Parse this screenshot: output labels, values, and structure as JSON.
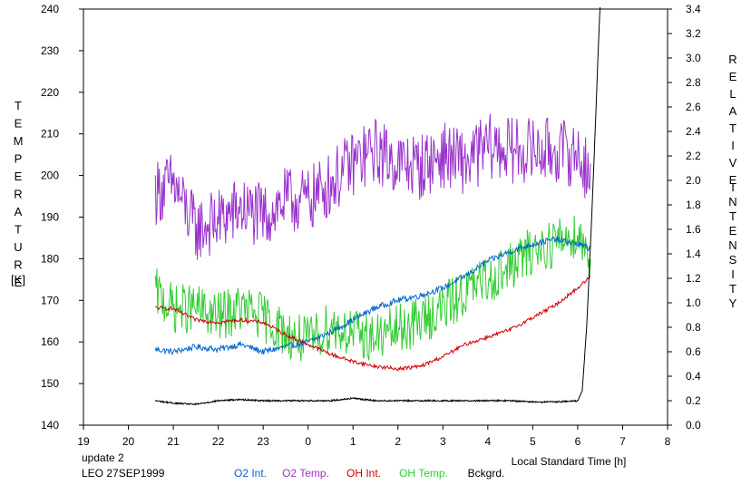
{
  "chart_data": {
    "type": "line",
    "xlabel": "Local Standard Time [h]",
    "x_ticks": [
      "19",
      "20",
      "21",
      "22",
      "23",
      "0",
      "1",
      "2",
      "3",
      "4",
      "5",
      "6",
      "7",
      "8"
    ],
    "xlim": [
      19,
      32
    ],
    "y_left": {
      "label_letters": [
        "T",
        "E",
        "M",
        "P",
        "E",
        "R",
        "A",
        "T",
        "U",
        "R",
        "E"
      ],
      "unit": "[K]",
      "lim": [
        140,
        240
      ],
      "ticks": [
        140,
        150,
        160,
        170,
        180,
        190,
        200,
        210,
        220,
        230,
        240
      ]
    },
    "y_right": {
      "label_letters_1": [
        "R",
        "E",
        "L",
        "A",
        "T",
        "I",
        "V",
        "E"
      ],
      "label_letters_2": [
        "I",
        "N",
        "T",
        "E",
        "N",
        "S",
        "I",
        "T",
        "Y"
      ],
      "lim": [
        0.0,
        3.4
      ],
      "ticks": [
        "0.0",
        "0.2",
        "0.4",
        "0.6",
        "0.8",
        "1.0",
        "1.2",
        "1.4",
        "1.6",
        "1.8",
        "2.0",
        "2.2",
        "2.4",
        "2.6",
        "2.8",
        "3.0",
        "3.2",
        "3.4"
      ]
    },
    "footer": {
      "update": "update 2",
      "station": "LEO 27SEP1999"
    },
    "series": [
      {
        "name": "O2 Int.",
        "axis": "right",
        "color": "#0066cc",
        "x": [
          20.6,
          21.0,
          21.5,
          22.0,
          22.5,
          23.0,
          23.5,
          24.0,
          24.5,
          25.0,
          25.5,
          26.0,
          26.5,
          27.0,
          27.5,
          28.0,
          28.5,
          29.0,
          29.5,
          30.0,
          30.3
        ],
        "y": [
          0.62,
          0.6,
          0.64,
          0.62,
          0.66,
          0.6,
          0.64,
          0.68,
          0.76,
          0.86,
          0.96,
          1.02,
          1.06,
          1.12,
          1.22,
          1.34,
          1.42,
          1.48,
          1.52,
          1.48,
          1.44
        ],
        "noise": 0.025
      },
      {
        "name": "O2 Temp.",
        "axis": "left",
        "color": "#9933cc",
        "x": [
          20.6,
          21.0,
          21.5,
          22.0,
          22.5,
          23.0,
          23.5,
          24.0,
          24.5,
          25.0,
          25.5,
          26.0,
          26.5,
          27.0,
          27.5,
          28.0,
          28.5,
          29.0,
          29.5,
          30.0,
          30.3
        ],
        "y": [
          196,
          198,
          187,
          189,
          192,
          190,
          194,
          194,
          198,
          203,
          206,
          203,
          202,
          205,
          203,
          207,
          206,
          206,
          206,
          205,
          200
        ],
        "noise": 8
      },
      {
        "name": "OH Int.",
        "axis": "right",
        "color": "#cc0000",
        "x": [
          20.6,
          21.0,
          21.5,
          22.0,
          22.5,
          23.0,
          23.5,
          24.0,
          24.5,
          25.0,
          25.5,
          26.0,
          26.5,
          27.0,
          27.5,
          28.0,
          28.5,
          29.0,
          29.5,
          30.0,
          30.3
        ],
        "y": [
          0.96,
          0.95,
          0.86,
          0.84,
          0.86,
          0.84,
          0.74,
          0.66,
          0.58,
          0.52,
          0.48,
          0.46,
          0.48,
          0.56,
          0.66,
          0.72,
          0.78,
          0.88,
          0.98,
          1.12,
          1.22
        ],
        "noise": 0.015
      },
      {
        "name": "OH Temp.",
        "axis": "left",
        "color": "#33cc33",
        "x": [
          20.6,
          21.0,
          21.5,
          22.0,
          22.5,
          23.0,
          23.5,
          24.0,
          24.5,
          25.0,
          25.5,
          26.0,
          26.5,
          27.0,
          27.5,
          28.0,
          28.5,
          29.0,
          29.5,
          30.0,
          30.3
        ],
        "y": [
          172,
          168,
          168,
          166,
          168,
          166,
          162,
          160,
          164,
          162,
          161,
          163,
          165,
          168,
          172,
          175,
          178,
          182,
          184,
          186,
          180
        ],
        "noise": 6
      },
      {
        "name": "Bckgrd.",
        "axis": "right",
        "color": "#000000",
        "x": [
          20.6,
          21.0,
          21.5,
          22.0,
          22.5,
          23.0,
          23.5,
          24.0,
          24.5,
          25.0,
          25.5,
          26.0,
          26.5,
          27.0,
          27.5,
          28.0,
          28.5,
          29.0,
          29.5,
          30.0,
          30.1,
          30.2,
          30.3,
          30.4,
          30.45,
          30.5
        ],
        "y": [
          0.2,
          0.18,
          0.17,
          0.2,
          0.21,
          0.2,
          0.2,
          0.2,
          0.2,
          0.22,
          0.2,
          0.2,
          0.2,
          0.2,
          0.2,
          0.2,
          0.2,
          0.19,
          0.19,
          0.2,
          0.28,
          0.8,
          1.6,
          2.5,
          3.0,
          3.45
        ],
        "noise": 0.006
      }
    ]
  }
}
